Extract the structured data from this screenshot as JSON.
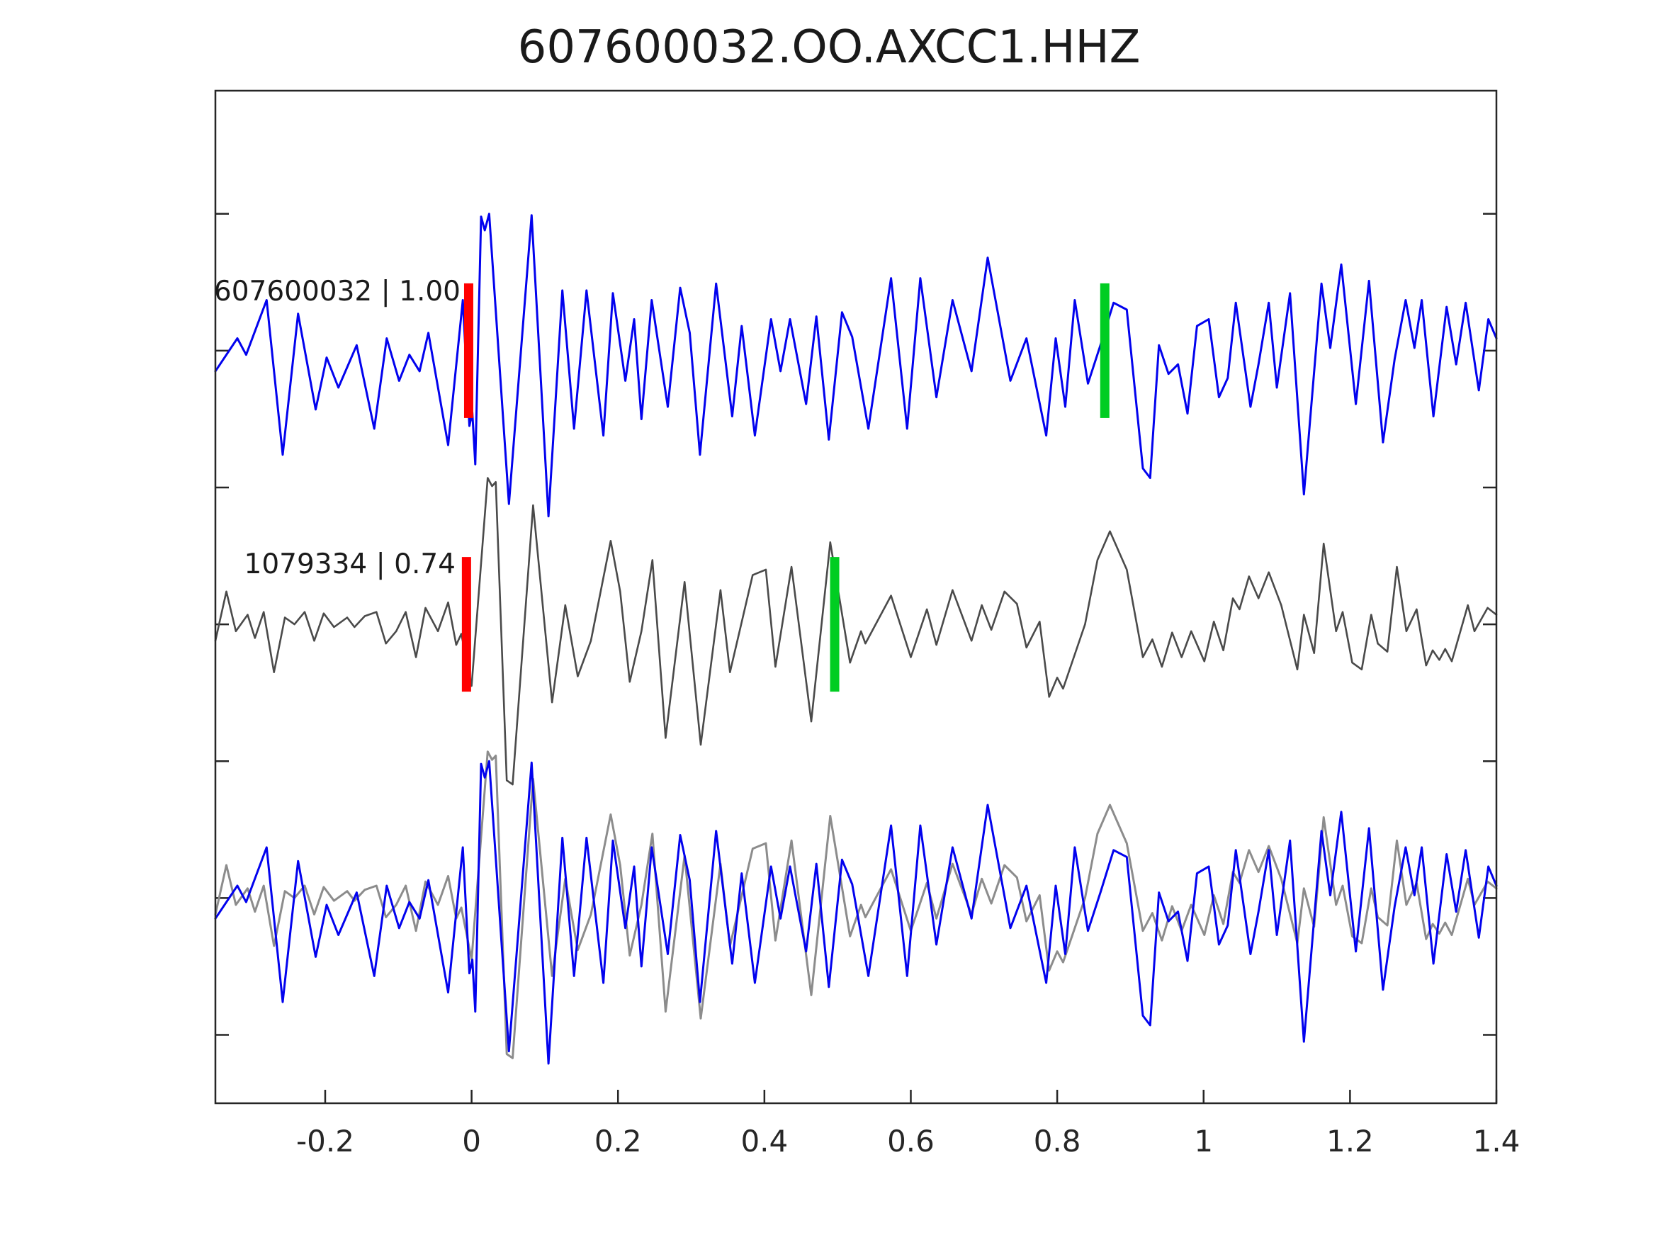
{
  "chart_data": {
    "type": "line",
    "title": "607600032.OO.AXCC1.HHZ",
    "xlabel": "",
    "ylabel": "",
    "xlim": [
      -0.35,
      1.4
    ],
    "ylim": [
      -0.75,
      2.95
    ],
    "x_ticks": [
      -0.2,
      0,
      0.2,
      0.4,
      0.6,
      0.8,
      1,
      1.2,
      1.4
    ],
    "x_tick_labels": [
      "-0.2",
      "0",
      "0.2",
      "0.4",
      "0.6",
      "0.8",
      "1",
      "1.2",
      "1.4"
    ],
    "y_ticks": [
      -0.5,
      0,
      0.5,
      1,
      1.5,
      2,
      2.5
    ],
    "y_tick_labels": [
      "",
      "",
      "",
      "",
      "",
      "",
      ""
    ],
    "grid": false,
    "legend_position": "none",
    "amplitude_scale_y_units": 0.5,
    "marker_half_height_y_units": 0.246,
    "marker_width_px": 13,
    "colors": {
      "template_trace": "#0202ee",
      "detection_trace": "#4a4a4a",
      "overlay_detection_trace": "#8c8c8c",
      "pick_marker": "#ff0000",
      "align_marker": "#00cd22",
      "spine": "#262626",
      "text": "#1a1a1a"
    },
    "rows": [
      {
        "label": "607600032 | 1.00",
        "series": [
          "template"
        ],
        "series_colors": [
          "#0202ee"
        ],
        "baseline": 2.0,
        "pick_marker": {
          "t": -0.004,
          "color": "#ff0000"
        },
        "align_marker": {
          "t": 0.865,
          "color": "#00cd22"
        }
      },
      {
        "label": "1079334 | 0.74",
        "series": [
          "detection"
        ],
        "series_colors": [
          "#4a4a4a"
        ],
        "baseline": 1.0,
        "pick_marker": {
          "t": -0.007,
          "color": "#ff0000"
        },
        "align_marker": {
          "t": 0.496,
          "color": "#00cd22"
        }
      },
      {
        "label": "",
        "series": [
          "detection",
          "template"
        ],
        "series_colors": [
          "#8c8c8c",
          "#0202ee"
        ],
        "baseline": 0.0,
        "pick_marker": null,
        "align_marker": null
      }
    ],
    "series": {
      "template": [
        [
          -0.35,
          -0.15
        ],
        [
          -0.32,
          0.09
        ],
        [
          -0.308,
          -0.03
        ],
        [
          -0.28,
          0.37
        ],
        [
          -0.258,
          -0.76
        ],
        [
          -0.237,
          0.27
        ],
        [
          -0.213,
          -0.43
        ],
        [
          -0.198,
          -0.05
        ],
        [
          -0.182,
          -0.27
        ],
        [
          -0.157,
          0.04
        ],
        [
          -0.133,
          -0.57
        ],
        [
          -0.116,
          0.09
        ],
        [
          -0.099,
          -0.22
        ],
        [
          -0.085,
          -0.03
        ],
        [
          -0.071,
          -0.15
        ],
        [
          -0.059,
          0.13
        ],
        [
          -0.032,
          -0.69
        ],
        [
          -0.012,
          0.37
        ],
        [
          -0.003,
          -0.55
        ],
        [
          0.001,
          -0.45
        ],
        [
          0.005,
          -0.83
        ],
        [
          0.013,
          0.98
        ],
        [
          0.018,
          0.88
        ],
        [
          0.024,
          1.0
        ],
        [
          0.051,
          -1.12
        ],
        [
          0.082,
          0.99
        ],
        [
          0.105,
          -1.21
        ],
        [
          0.124,
          0.44
        ],
        [
          0.14,
          -0.57
        ],
        [
          0.157,
          0.44
        ],
        [
          0.18,
          -0.62
        ],
        [
          0.193,
          0.42
        ],
        [
          0.21,
          -0.22
        ],
        [
          0.222,
          0.23
        ],
        [
          0.232,
          -0.5
        ],
        [
          0.246,
          0.37
        ],
        [
          0.268,
          -0.41
        ],
        [
          0.285,
          0.46
        ],
        [
          0.298,
          0.13
        ],
        [
          0.312,
          -0.76
        ],
        [
          0.334,
          0.49
        ],
        [
          0.356,
          -0.48
        ],
        [
          0.369,
          0.18
        ],
        [
          0.387,
          -0.62
        ],
        [
          0.409,
          0.23
        ],
        [
          0.422,
          -0.15
        ],
        [
          0.435,
          0.23
        ],
        [
          0.457,
          -0.39
        ],
        [
          0.471,
          0.25
        ],
        [
          0.488,
          -0.65
        ],
        [
          0.506,
          0.28
        ],
        [
          0.52,
          0.1
        ],
        [
          0.542,
          -0.57
        ],
        [
          0.573,
          0.53
        ],
        [
          0.595,
          -0.57
        ],
        [
          0.613,
          0.53
        ],
        [
          0.635,
          -0.34
        ],
        [
          0.657,
          0.37
        ],
        [
          0.683,
          -0.15
        ],
        [
          0.705,
          0.68
        ],
        [
          0.736,
          -0.22
        ],
        [
          0.758,
          0.09
        ],
        [
          0.785,
          -0.62
        ],
        [
          0.798,
          0.09
        ],
        [
          0.811,
          -0.41
        ],
        [
          0.824,
          0.37
        ],
        [
          0.842,
          -0.24
        ],
        [
          0.859,
          0.04
        ],
        [
          0.877,
          0.35
        ],
        [
          0.895,
          0.3
        ],
        [
          0.917,
          -0.86
        ],
        [
          0.927,
          -0.93
        ],
        [
          0.939,
          0.04
        ],
        [
          0.952,
          -0.17
        ],
        [
          0.965,
          -0.1
        ],
        [
          0.978,
          -0.46
        ],
        [
          0.991,
          0.18
        ],
        [
          1.007,
          0.23
        ],
        [
          1.021,
          -0.34
        ],
        [
          1.033,
          -0.2
        ],
        [
          1.044,
          0.35
        ],
        [
          1.064,
          -0.41
        ],
        [
          1.075,
          -0.1
        ],
        [
          1.089,
          0.35
        ],
        [
          1.1,
          -0.27
        ],
        [
          1.118,
          0.42
        ],
        [
          1.137,
          -1.05
        ],
        [
          1.161,
          0.49
        ],
        [
          1.173,
          0.02
        ],
        [
          1.188,
          0.63
        ],
        [
          1.208,
          -0.39
        ],
        [
          1.226,
          0.51
        ],
        [
          1.245,
          -0.67
        ],
        [
          1.261,
          -0.06
        ],
        [
          1.276,
          0.37
        ],
        [
          1.288,
          0.02
        ],
        [
          1.298,
          0.37
        ],
        [
          1.314,
          -0.48
        ],
        [
          1.332,
          0.32
        ],
        [
          1.345,
          -0.1
        ],
        [
          1.358,
          0.35
        ],
        [
          1.376,
          -0.29
        ],
        [
          1.389,
          0.23
        ],
        [
          1.4,
          0.09
        ]
      ],
      "detection": [
        [
          -0.35,
          -0.12
        ],
        [
          -0.335,
          0.24
        ],
        [
          -0.322,
          -0.05
        ],
        [
          -0.306,
          0.07
        ],
        [
          -0.296,
          -0.1
        ],
        [
          -0.284,
          0.09
        ],
        [
          -0.27,
          -0.35
        ],
        [
          -0.255,
          0.05
        ],
        [
          -0.242,
          0.0
        ],
        [
          -0.228,
          0.09
        ],
        [
          -0.215,
          -0.12
        ],
        [
          -0.202,
          0.08
        ],
        [
          -0.188,
          -0.02
        ],
        [
          -0.17,
          0.05
        ],
        [
          -0.16,
          -0.02
        ],
        [
          -0.146,
          0.06
        ],
        [
          -0.13,
          0.09
        ],
        [
          -0.117,
          -0.14
        ],
        [
          -0.103,
          -0.05
        ],
        [
          -0.09,
          0.09
        ],
        [
          -0.076,
          -0.24
        ],
        [
          -0.063,
          0.12
        ],
        [
          -0.046,
          -0.05
        ],
        [
          -0.032,
          0.16
        ],
        [
          -0.021,
          -0.15
        ],
        [
          -0.014,
          -0.07
        ],
        [
          0.0,
          -0.45
        ],
        [
          0.022,
          1.07
        ],
        [
          0.028,
          1.01
        ],
        [
          0.033,
          1.04
        ],
        [
          0.048,
          -1.14
        ],
        [
          0.056,
          -1.17
        ],
        [
          0.084,
          0.87
        ],
        [
          0.11,
          -0.57
        ],
        [
          0.128,
          0.14
        ],
        [
          0.145,
          -0.38
        ],
        [
          0.163,
          -0.12
        ],
        [
          0.19,
          0.61
        ],
        [
          0.203,
          0.24
        ],
        [
          0.216,
          -0.42
        ],
        [
          0.232,
          -0.05
        ],
        [
          0.247,
          0.47
        ],
        [
          0.265,
          -0.83
        ],
        [
          0.291,
          0.31
        ],
        [
          0.313,
          -0.88
        ],
        [
          0.34,
          0.25
        ],
        [
          0.353,
          -0.35
        ],
        [
          0.384,
          0.36
        ],
        [
          0.402,
          0.4
        ],
        [
          0.415,
          -0.31
        ],
        [
          0.437,
          0.42
        ],
        [
          0.464,
          -0.71
        ],
        [
          0.49,
          0.6
        ],
        [
          0.517,
          -0.28
        ],
        [
          0.532,
          -0.05
        ],
        [
          0.538,
          -0.14
        ],
        [
          0.573,
          0.21
        ],
        [
          0.6,
          -0.24
        ],
        [
          0.622,
          0.11
        ],
        [
          0.635,
          -0.15
        ],
        [
          0.657,
          0.25
        ],
        [
          0.683,
          -0.12
        ],
        [
          0.697,
          0.14
        ],
        [
          0.71,
          -0.04
        ],
        [
          0.728,
          0.24
        ],
        [
          0.745,
          0.15
        ],
        [
          0.758,
          -0.17
        ],
        [
          0.776,
          0.02
        ],
        [
          0.789,
          -0.53
        ],
        [
          0.8,
          -0.39
        ],
        [
          0.808,
          -0.47
        ],
        [
          0.838,
          0.0
        ],
        [
          0.855,
          0.47
        ],
        [
          0.872,
          0.68
        ],
        [
          0.895,
          0.4
        ],
        [
          0.917,
          -0.24
        ],
        [
          0.93,
          -0.11
        ],
        [
          0.943,
          -0.31
        ],
        [
          0.957,
          -0.06
        ],
        [
          0.97,
          -0.24
        ],
        [
          0.983,
          -0.05
        ],
        [
          1.001,
          -0.27
        ],
        [
          1.014,
          0.02
        ],
        [
          1.027,
          -0.19
        ],
        [
          1.04,
          0.19
        ],
        [
          1.049,
          0.11
        ],
        [
          1.062,
          0.35
        ],
        [
          1.075,
          0.19
        ],
        [
          1.089,
          0.38
        ],
        [
          1.106,
          0.14
        ],
        [
          1.128,
          -0.33
        ],
        [
          1.137,
          0.07
        ],
        [
          1.151,
          -0.21
        ],
        [
          1.164,
          0.59
        ],
        [
          1.181,
          -0.05
        ],
        [
          1.19,
          0.09
        ],
        [
          1.203,
          -0.28
        ],
        [
          1.216,
          -0.33
        ],
        [
          1.229,
          0.07
        ],
        [
          1.238,
          -0.14
        ],
        [
          1.251,
          -0.2
        ],
        [
          1.264,
          0.42
        ],
        [
          1.277,
          -0.05
        ],
        [
          1.291,
          0.11
        ],
        [
          1.304,
          -0.3
        ],
        [
          1.313,
          -0.19
        ],
        [
          1.322,
          -0.26
        ],
        [
          1.33,
          -0.18
        ],
        [
          1.339,
          -0.27
        ],
        [
          1.361,
          0.14
        ],
        [
          1.37,
          -0.05
        ],
        [
          1.388,
          0.12
        ],
        [
          1.4,
          0.07
        ]
      ]
    }
  }
}
